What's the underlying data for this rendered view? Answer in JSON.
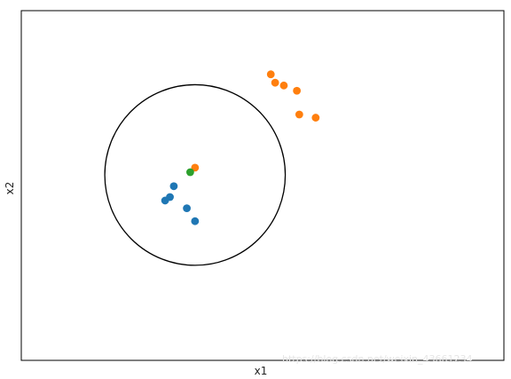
{
  "chart_data": {
    "type": "scatter",
    "xlabel": "x1",
    "ylabel": "x2",
    "grid": false,
    "xlim": [
      0,
      10
    ],
    "ylim": [
      0,
      10
    ],
    "series": [
      {
        "color": "#1f77b4",
        "points": [
          [
            3.16,
            4.98
          ],
          [
            3.08,
            4.67
          ],
          [
            2.98,
            4.57
          ],
          [
            3.43,
            4.35
          ],
          [
            3.6,
            3.98
          ]
        ]
      },
      {
        "color": "#ff7f0e",
        "points": [
          [
            5.17,
            8.18
          ],
          [
            5.26,
            7.94
          ],
          [
            5.44,
            7.86
          ],
          [
            5.71,
            7.71
          ],
          [
            5.76,
            7.03
          ],
          [
            6.1,
            6.94
          ],
          [
            3.6,
            5.51
          ]
        ]
      },
      {
        "color": "#2ca02c",
        "points": [
          [
            3.5,
            5.38
          ]
        ]
      }
    ],
    "annotations": [
      {
        "type": "circle",
        "center": [
          3.6,
          5.3
        ],
        "radius": 1.87,
        "color": "#000000"
      }
    ]
  },
  "watermark": "https://blog.csdn.net/weixin_43661234"
}
